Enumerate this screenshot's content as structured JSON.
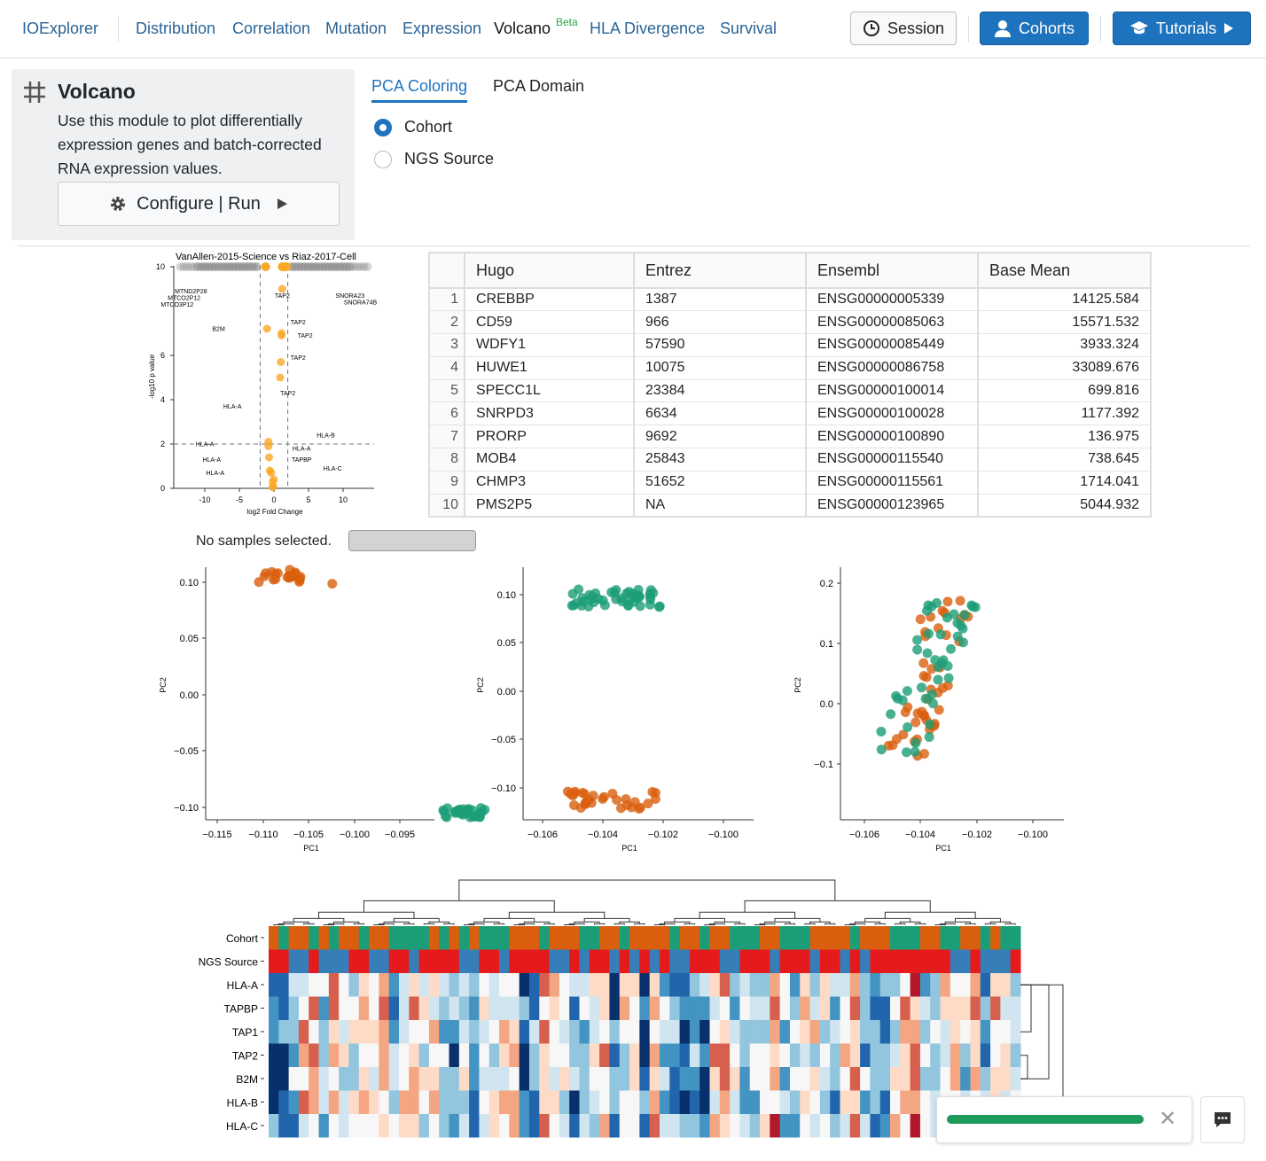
{
  "nav": {
    "brand": "IOExplorer",
    "items": [
      "Distribution",
      "Correlation",
      "Mutation",
      "Expression",
      "Volcano",
      "HLA Divergence",
      "Survival"
    ],
    "beta": "Beta",
    "session": "Session",
    "cohorts": "Cohorts",
    "tutorials": "Tutorials"
  },
  "module": {
    "title": "Volcano",
    "description": "Use this module to plot differentially expression genes and batch-corrected RNA expression values.",
    "configure": "Configure | Run"
  },
  "tabs": [
    "PCA Coloring",
    "PCA Domain"
  ],
  "radios": [
    {
      "label": "Cohort",
      "checked": true
    },
    {
      "label": "NGS Source",
      "checked": false
    }
  ],
  "volcano": {
    "title": "VanAllen-2015-Science vs Riaz-2017-Cell",
    "xlabel": "log2 Fold Change",
    "ylabel": "-log10 p value",
    "xticks": [
      -10,
      -5,
      0,
      5,
      10
    ],
    "yticks": [
      0,
      2,
      4,
      6,
      8,
      10
    ],
    "points": [
      [
        1.2,
        9
      ],
      [
        -1,
        7.2
      ],
      [
        1.1,
        7
      ],
      [
        1.1,
        6.9
      ],
      [
        1,
        5.7
      ],
      [
        0.9,
        5
      ],
      [
        -0.8,
        2.1
      ],
      [
        -0.8,
        1.9
      ],
      [
        -0.7,
        1.4
      ],
      [
        -0.6,
        0.8
      ],
      [
        -0.4,
        0.7
      ],
      [
        -0.2,
        0.3
      ],
      [
        -0.1,
        0.1
      ],
      [
        0,
        0.4
      ],
      [
        -0.2,
        0.05
      ]
    ],
    "labels": [
      [
        "TAP2",
        1.2,
        8.6
      ],
      [
        "B2M",
        -8,
        7.1
      ],
      [
        "TAP2",
        3.5,
        7.4
      ],
      [
        "TAP2",
        4.5,
        6.8
      ],
      [
        "TAP2",
        3.5,
        5.8
      ],
      [
        "TAP2",
        2,
        4.2
      ],
      [
        "HLA-A",
        -6,
        3.6
      ],
      [
        "HLA-B",
        7.5,
        2.3
      ],
      [
        "HLA-A",
        -10,
        1.9
      ],
      [
        "HLA-A",
        4,
        1.7
      ],
      [
        "HLA-A",
        -9,
        1.2
      ],
      [
        "TAPBP",
        4,
        1.2
      ],
      [
        "HLA-A",
        -8.5,
        0.6
      ],
      [
        "HLA-C",
        8.5,
        0.8
      ],
      [
        "MTND2P28",
        -12,
        8.8
      ],
      [
        "MTCO2P12",
        -13,
        8.5
      ],
      [
        "MTCO3P12",
        -14,
        8.2
      ],
      [
        "SNORA23",
        11,
        8.6
      ],
      [
        "SNORA74B",
        12.5,
        8.3
      ]
    ]
  },
  "table": {
    "headers": [
      "Hugo",
      "Entrez",
      "Ensembl",
      "Base Mean"
    ],
    "rows": [
      [
        "1",
        "CREBBP",
        "1387",
        "ENSG00000005339",
        "14125.584"
      ],
      [
        "2",
        "CD59",
        "966",
        "ENSG00000085063",
        "15571.532"
      ],
      [
        "3",
        "WDFY1",
        "57590",
        "ENSG00000085449",
        "3933.324"
      ],
      [
        "4",
        "HUWE1",
        "10075",
        "ENSG00000086758",
        "33089.676"
      ],
      [
        "5",
        "SPECC1L",
        "23384",
        "ENSG00000100014",
        "699.816"
      ],
      [
        "6",
        "SNRPD3",
        "6634",
        "ENSG00000100028",
        "1177.392"
      ],
      [
        "7",
        "PRORP",
        "9692",
        "ENSG00000100890",
        "136.975"
      ],
      [
        "8",
        "MOB4",
        "25843",
        "ENSG00000115540",
        "738.645"
      ],
      [
        "9",
        "CHMP3",
        "51652",
        "ENSG00000115561",
        "1714.041"
      ],
      [
        "10",
        "PMS2P5",
        "NA",
        "ENSG00000123965",
        "5044.932"
      ]
    ]
  },
  "selection": {
    "status": "No samples selected."
  },
  "colors": {
    "orange": "#d95f0e",
    "green": "#1b9e77",
    "blue": "#1e73be"
  },
  "pca": [
    {
      "xlabel": "PC1",
      "ylabel": "PC2",
      "xticks": [
        "−0.115",
        "−0.110",
        "−0.105",
        "−0.100",
        "−0.095"
      ],
      "yticks": [
        "0.10",
        "0.05",
        "0.00",
        "−0.05",
        "−0.10"
      ]
    },
    {
      "xlabel": "PC1",
      "ylabel": "PC2",
      "xticks": [
        "−0.106",
        "−0.104",
        "−0.102",
        "−0.100"
      ],
      "yticks": [
        "0.10",
        "0.05",
        "0.00",
        "−0.05",
        "−0.10"
      ]
    },
    {
      "xlabel": "PC1",
      "ylabel": "PC2",
      "xticks": [
        "−0.106",
        "−0.104",
        "−0.102",
        "−0.100"
      ],
      "yticks": [
        "0.2",
        "0.1",
        "0.0",
        "−0.1"
      ]
    }
  ],
  "heatmap": {
    "rows": [
      "Cohort",
      "NGS Source",
      "HLA-A",
      "TAPBP",
      "TAP1",
      "TAP2",
      "B2M",
      "HLA-B",
      "HLA-C"
    ]
  }
}
